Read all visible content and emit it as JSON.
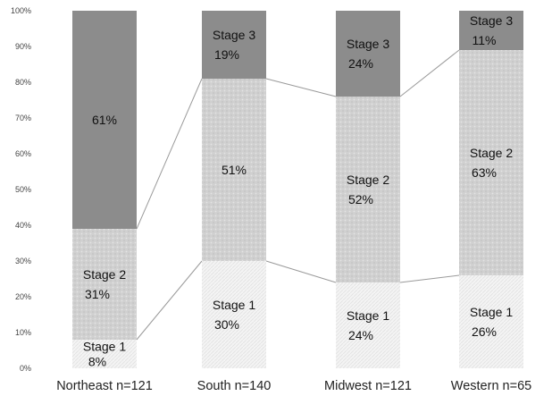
{
  "chart_data": {
    "type": "bar",
    "stacked": true,
    "categories": [
      "Northeast n=121",
      "South n=140",
      "Midwest n=121",
      "Western n=65"
    ],
    "series": [
      {
        "name": "Stage 1",
        "values": [
          8,
          30,
          24,
          26
        ],
        "labels": [
          "8%",
          "30%",
          "24%",
          "26%"
        ],
        "color": "#f2f2f2"
      },
      {
        "name": "Stage 2",
        "values": [
          31,
          51,
          52,
          63
        ],
        "labels": [
          "31%",
          "51%",
          "52%",
          "63%"
        ],
        "color": "#d3d3d3"
      },
      {
        "name": "Stage 3",
        "values": [
          61,
          19,
          24,
          11
        ],
        "labels": [
          "61%",
          "19%",
          "24%",
          "11%"
        ],
        "color": "#8c8c8c"
      }
    ],
    "segment_names_shown": [
      [
        "Stage 1",
        "Stage 2",
        ""
      ],
      [
        "Stage 1",
        "",
        "Stage 3"
      ],
      [
        "Stage 1",
        "Stage 2",
        "Stage 3"
      ],
      [
        "Stage 1",
        "Stage 2",
        "Stage 3"
      ]
    ],
    "yticks": [
      "0%",
      "10%",
      "20%",
      "30%",
      "40%",
      "50%",
      "60%",
      "70%",
      "80%",
      "90%",
      "100%"
    ],
    "ylim": [
      0,
      100
    ],
    "series_lines": true,
    "grid": false,
    "legend": "none"
  }
}
